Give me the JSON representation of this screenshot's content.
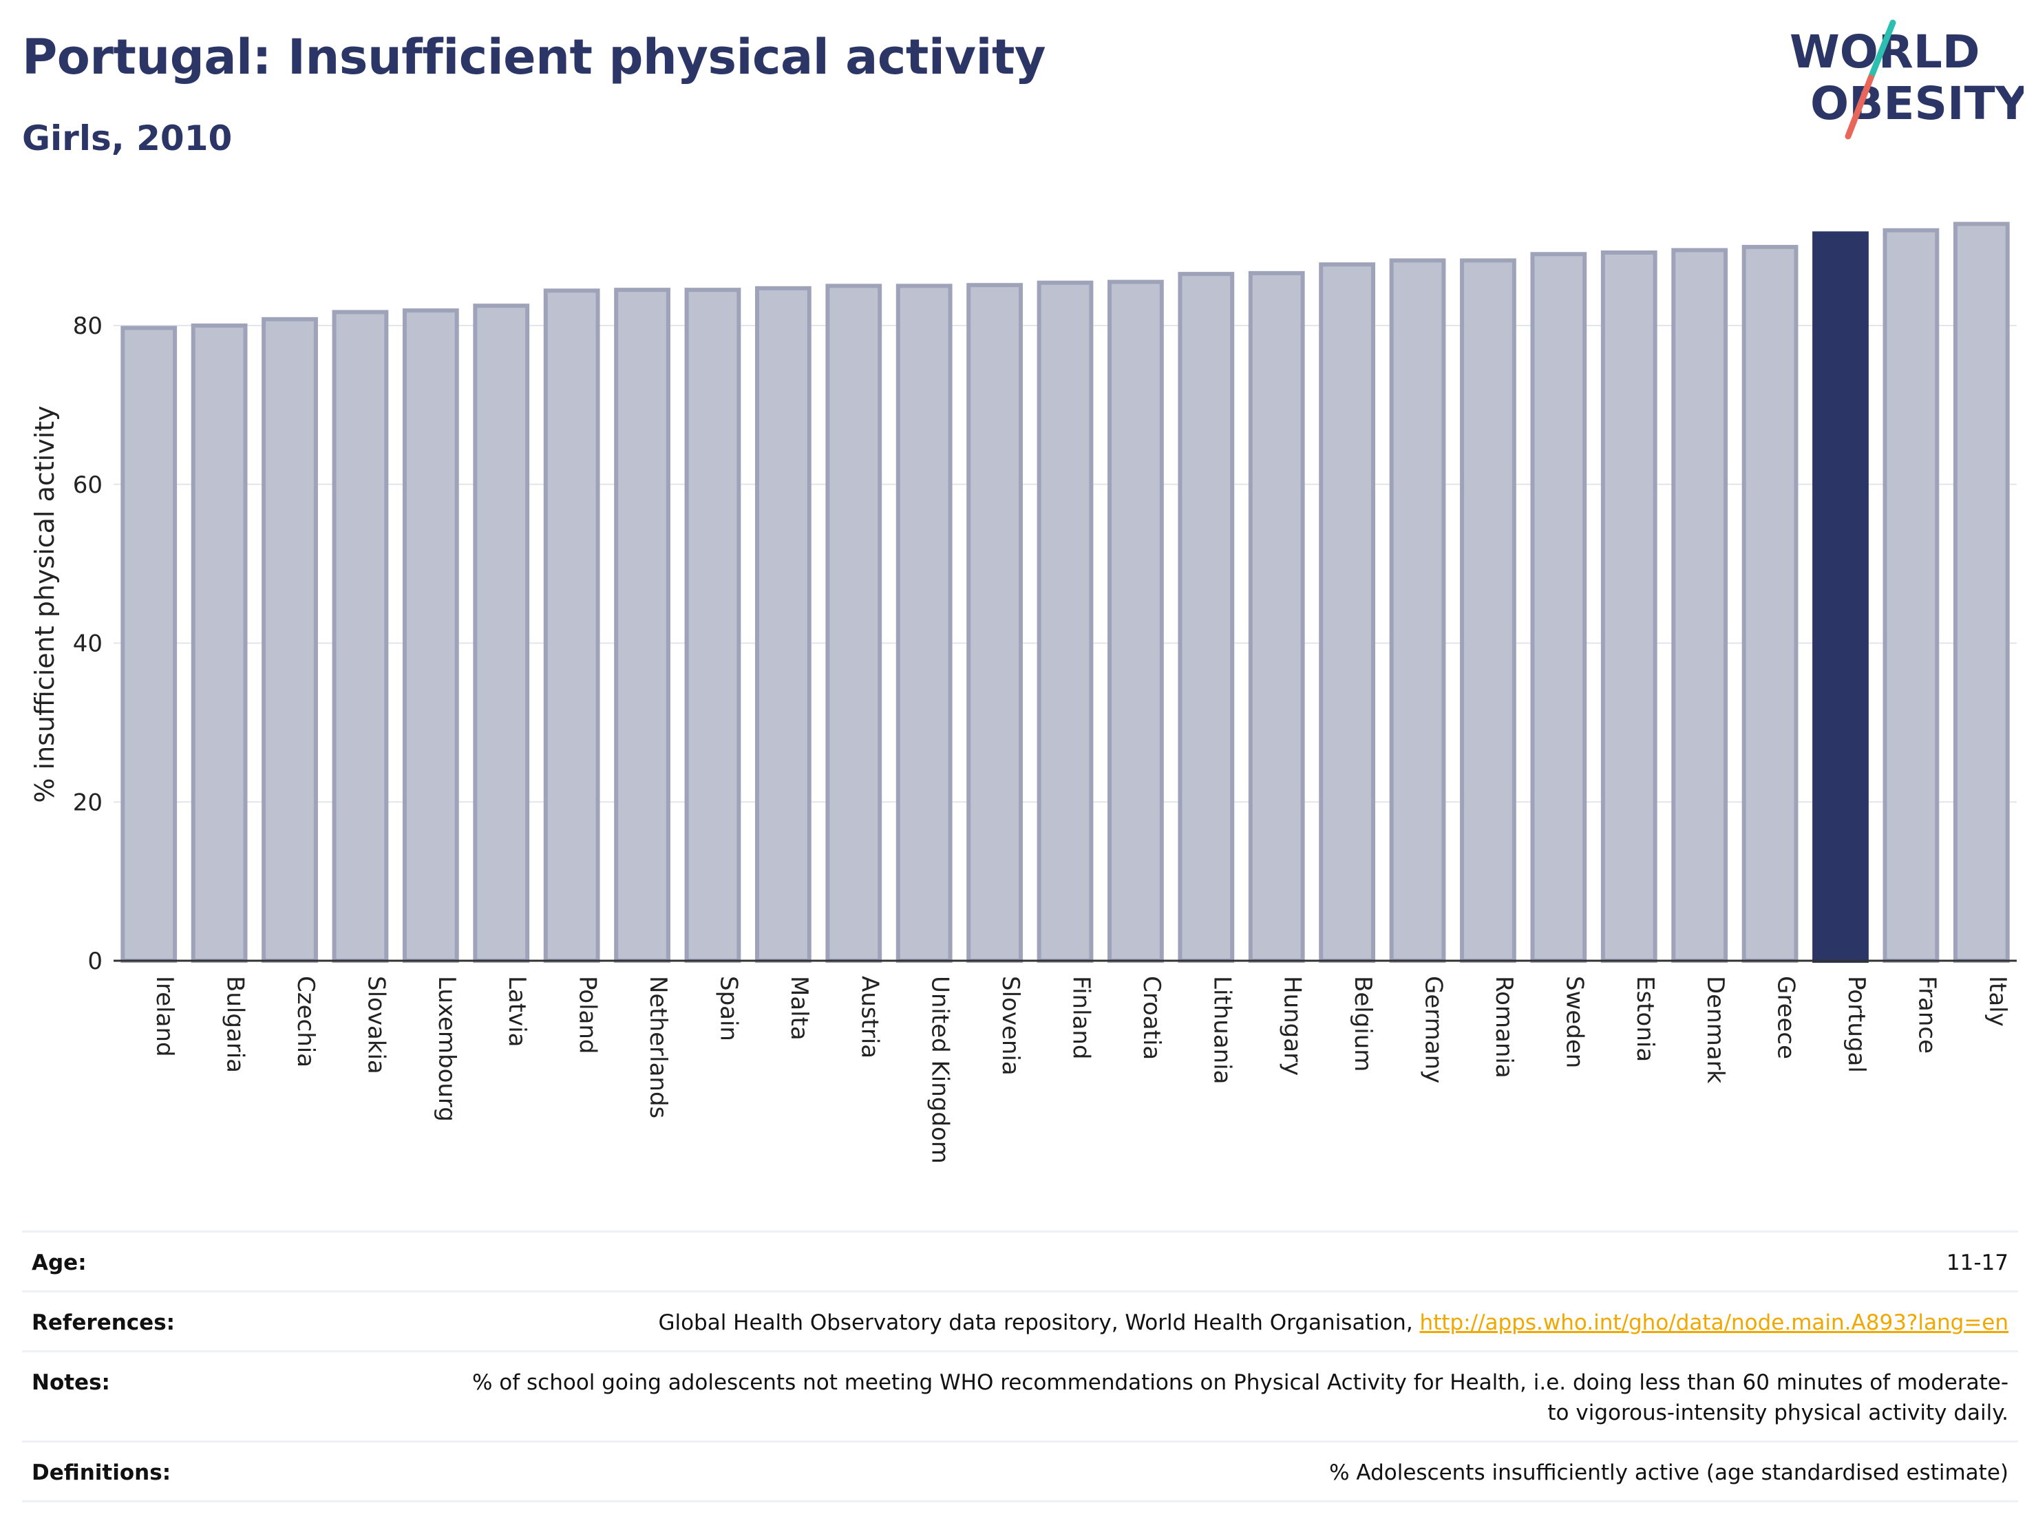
{
  "header": {
    "title": "Portugal: Insufficient physical activity",
    "subtitle": "Girls, 2010"
  },
  "logo": {
    "line1": "WORLD",
    "line2": "OBESITY"
  },
  "colors": {
    "highlight": "#2b3566",
    "bar_fill": "#bec1cf",
    "bar_stroke": "#9fa3ba",
    "title": "#2b3566",
    "logo_slash_top": "#2cbfb0",
    "logo_slash_bottom": "#e8675a",
    "link": "#f0a800"
  },
  "chart_data": {
    "type": "bar",
    "title": "",
    "ylabel": "% insufficient physical activity",
    "xlabel": "",
    "ylim": [
      0,
      95
    ],
    "yticks": [
      0,
      20,
      40,
      60,
      80
    ],
    "grid": true,
    "highlight": "Portugal",
    "categories": [
      "Ireland",
      "Bulgaria",
      "Czechia",
      "Slovakia",
      "Luxembourg",
      "Latvia",
      "Poland",
      "Netherlands",
      "Spain",
      "Malta",
      "Austria",
      "United Kingdom",
      "Slovenia",
      "Finland",
      "Croatia",
      "Lithuania",
      "Hungary",
      "Belgium",
      "Germany",
      "Romania",
      "Sweden",
      "Estonia",
      "Denmark",
      "Greece",
      "Portugal",
      "France",
      "Italy"
    ],
    "values": [
      79.7,
      80.0,
      80.8,
      81.7,
      81.9,
      82.5,
      84.4,
      84.5,
      84.5,
      84.7,
      85.0,
      85.0,
      85.1,
      85.4,
      85.5,
      86.5,
      86.6,
      87.7,
      88.2,
      88.2,
      89.0,
      89.2,
      89.5,
      89.9,
      91.6,
      92.0,
      92.8
    ]
  },
  "info": {
    "age_label": "Age:",
    "age_value": "11-17",
    "references_label": "References:",
    "references_text": "Global Health Observatory data repository, World Health Organisation, ",
    "references_link": "http://apps.who.int/gho/data/node.main.A893?lang=en",
    "notes_label": "Notes:",
    "notes_text": "% of school going adolescents not meeting WHO recommendations on Physical Activity for Health, i.e. doing less than 60 minutes of moderate- to vigorous-intensity physical activity daily.",
    "definitions_label": "Definitions:",
    "definitions_text": "% Adolescents insufficiently active (age standardised estimate)"
  }
}
